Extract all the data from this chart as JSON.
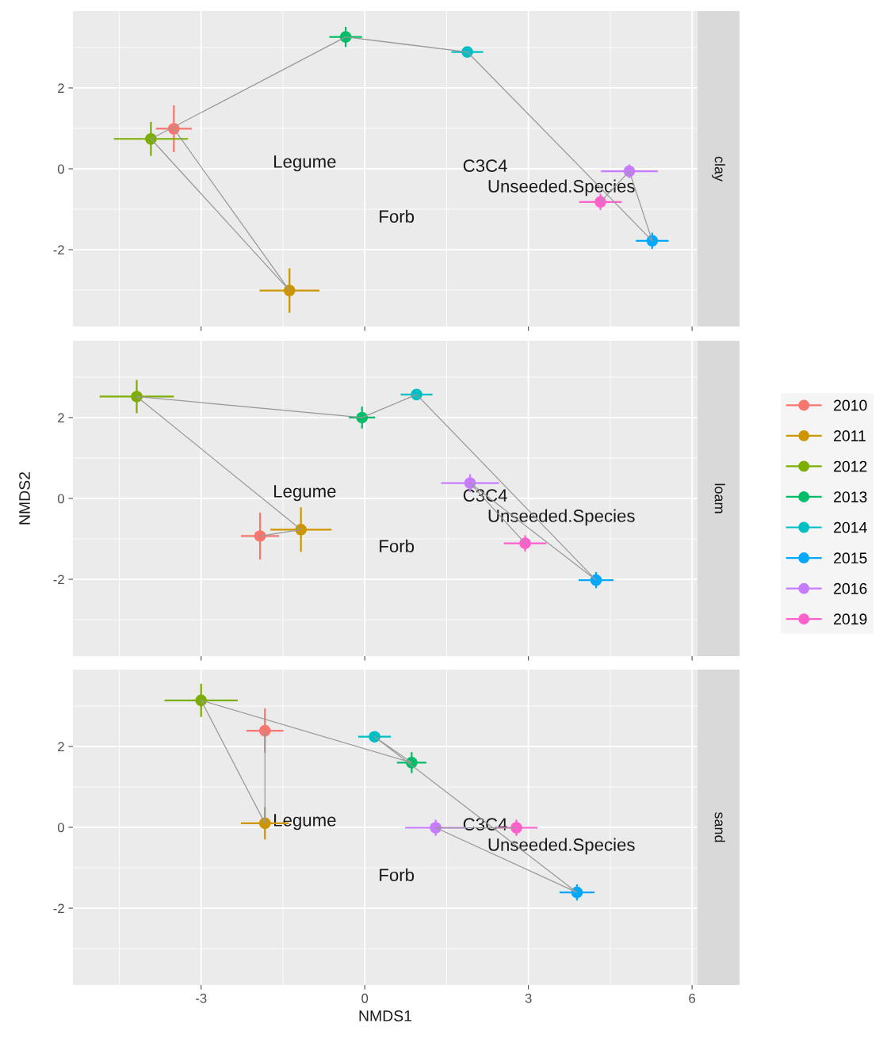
{
  "chart_data": [
    {
      "type": "scatter",
      "y2label": "clay",
      "xlim": [
        -5.35,
        6.1
      ],
      "ylim": [
        -3.9,
        3.9
      ],
      "xticks": [
        -3,
        0,
        3,
        6
      ],
      "yticks": [
        -2,
        0,
        2
      ],
      "tick_labels": "y",
      "grid": true,
      "legend": "right",
      "marker": "circle",
      "series": [
        {
          "type": "line",
          "marker": "none",
          "color": "#999999",
          "x": [
            -3.5,
            -1.38,
            -3.92,
            -0.35,
            1.88,
            5.27,
            4.85,
            4.32
          ],
          "values": [
            0.99,
            -3.01,
            0.74,
            3.26,
            2.89,
            -1.78,
            -0.06,
            -0.82
          ]
        },
        {
          "name": "2010",
          "color": "#F8766D",
          "x": [
            -3.5
          ],
          "values": [
            0.99
          ],
          "xerrors": [
            0.33
          ],
          "errors": [
            0.58
          ]
        },
        {
          "name": "2011",
          "color": "#CD9600",
          "x": [
            -1.38
          ],
          "values": [
            -3.01
          ],
          "xerrors": [
            0.55
          ],
          "errors": [
            0.55
          ]
        },
        {
          "name": "2012",
          "color": "#7CAE00",
          "x": [
            -3.92
          ],
          "values": [
            0.74
          ],
          "xerrors": [
            0.68
          ],
          "errors": [
            0.42
          ]
        },
        {
          "name": "2013",
          "color": "#00BE67",
          "x": [
            -0.35
          ],
          "values": [
            3.26
          ],
          "xerrors": [
            0.3
          ],
          "errors": [
            0.25
          ]
        },
        {
          "name": "2014",
          "color": "#00BFC4",
          "x": [
            1.88
          ],
          "values": [
            2.89
          ],
          "xerrors": [
            0.29
          ],
          "errors": [
            0.1
          ]
        },
        {
          "name": "2015",
          "color": "#00A9FF",
          "x": [
            5.27
          ],
          "values": [
            -1.78
          ],
          "xerrors": [
            0.3
          ],
          "errors": [
            0.2
          ]
        },
        {
          "name": "2016",
          "color": "#C77CFF",
          "x": [
            4.85
          ],
          "values": [
            -0.06
          ],
          "xerrors": [
            0.52
          ],
          "errors": [
            0.17
          ]
        },
        {
          "name": "2019",
          "color": "#FF61CC",
          "x": [
            4.32
          ],
          "values": [
            -0.82
          ],
          "xerrors": [
            0.39
          ],
          "errors": [
            0.2
          ]
        }
      ],
      "annotations": [
        "Legume",
        "Forb",
        "C3C4",
        "Unseeded.Species"
      ]
    },
    {
      "type": "scatter",
      "y2label": "loam",
      "ylabel": "NMDS2",
      "xlim": [
        -5.35,
        6.1
      ],
      "ylim": [
        -3.9,
        3.9
      ],
      "xticks": [
        -3,
        0,
        3,
        6
      ],
      "yticks": [
        -2,
        0,
        2
      ],
      "tick_labels": "y",
      "grid": true,
      "marker": "circle",
      "series": [
        {
          "type": "line",
          "marker": "none",
          "color": "#999999",
          "x": [
            -1.92,
            -1.17,
            -4.18,
            -0.05,
            0.95,
            4.24,
            1.93,
            2.94
          ],
          "values": [
            -0.93,
            -0.77,
            2.52,
            2.0,
            2.57,
            -2.02,
            0.38,
            -1.11
          ]
        },
        {
          "name": "2010",
          "color": "#F8766D",
          "x": [
            -1.92
          ],
          "values": [
            -0.93
          ],
          "xerrors": [
            0.35
          ],
          "errors": [
            0.58
          ]
        },
        {
          "name": "2011",
          "color": "#CD9600",
          "x": [
            -1.17
          ],
          "values": [
            -0.77
          ],
          "xerrors": [
            0.56
          ],
          "errors": [
            0.55
          ]
        },
        {
          "name": "2012",
          "color": "#7CAE00",
          "x": [
            -4.18
          ],
          "values": [
            2.52
          ],
          "xerrors": [
            0.68
          ],
          "errors": [
            0.41
          ]
        },
        {
          "name": "2013",
          "color": "#00BE67",
          "x": [
            -0.05
          ],
          "values": [
            2.0
          ],
          "xerrors": [
            0.24
          ],
          "errors": [
            0.27
          ]
        },
        {
          "name": "2014",
          "color": "#00BFC4",
          "x": [
            0.95
          ],
          "values": [
            2.57
          ],
          "xerrors": [
            0.29
          ],
          "errors": [
            0.1
          ]
        },
        {
          "name": "2015",
          "color": "#00A9FF",
          "x": [
            4.24
          ],
          "values": [
            -2.02
          ],
          "xerrors": [
            0.32
          ],
          "errors": [
            0.2
          ]
        },
        {
          "name": "2016",
          "color": "#C77CFF",
          "x": [
            1.93
          ],
          "values": [
            0.38
          ],
          "xerrors": [
            0.53
          ],
          "errors": [
            0.22
          ]
        },
        {
          "name": "2019",
          "color": "#FF61CC",
          "x": [
            2.94
          ],
          "values": [
            -1.11
          ],
          "xerrors": [
            0.39
          ],
          "errors": [
            0.2
          ]
        }
      ],
      "annotations": [
        "Legume",
        "Forb",
        "C3C4",
        "Unseeded.Species"
      ]
    },
    {
      "type": "scatter",
      "y2label": "sand",
      "xlabel": "NMDS1",
      "xlim": [
        -5.35,
        6.1
      ],
      "ylim": [
        -3.9,
        3.9
      ],
      "xticks": [
        -3,
        0,
        3,
        6
      ],
      "yticks": [
        -2,
        0,
        2
      ],
      "grid": true,
      "marker": "circle",
      "series": [
        {
          "type": "line",
          "marker": "none",
          "color": "#999999",
          "x": [
            -1.83,
            -1.83,
            -3.0,
            0.86,
            0.18,
            3.89,
            1.3,
            2.78
          ],
          "values": [
            2.39,
            0.1,
            3.14,
            1.6,
            2.24,
            -1.61,
            -0.01,
            -0.01
          ]
        },
        {
          "name": "2010",
          "color": "#F8766D",
          "x": [
            -1.83
          ],
          "values": [
            2.39
          ],
          "xerrors": [
            0.34
          ],
          "errors": [
            0.55
          ]
        },
        {
          "name": "2011",
          "color": "#CD9600",
          "x": [
            -1.83
          ],
          "values": [
            0.1
          ],
          "xerrors": [
            0.44
          ],
          "errors": [
            0.4
          ]
        },
        {
          "name": "2012",
          "color": "#7CAE00",
          "x": [
            -3.0
          ],
          "values": [
            3.14
          ],
          "xerrors": [
            0.67
          ],
          "errors": [
            0.41
          ]
        },
        {
          "name": "2013",
          "color": "#00BE67",
          "x": [
            0.86
          ],
          "values": [
            1.6
          ],
          "xerrors": [
            0.27
          ],
          "errors": [
            0.26
          ]
        },
        {
          "name": "2014",
          "color": "#00BFC4",
          "x": [
            0.18
          ],
          "values": [
            2.24
          ],
          "xerrors": [
            0.3
          ],
          "errors": [
            0.1
          ]
        },
        {
          "name": "2015",
          "color": "#00A9FF",
          "x": [
            3.89
          ],
          "values": [
            -1.61
          ],
          "xerrors": [
            0.32
          ],
          "errors": [
            0.2
          ]
        },
        {
          "name": "2016",
          "color": "#C77CFF",
          "x": [
            1.3
          ],
          "values": [
            -0.01
          ],
          "xerrors": [
            0.56
          ],
          "errors": [
            0.2
          ]
        },
        {
          "name": "2019",
          "color": "#FF61CC",
          "x": [
            2.78
          ],
          "values": [
            -0.01
          ],
          "xerrors": [
            0.39
          ],
          "errors": [
            0.2
          ]
        }
      ],
      "annotations": [
        "Legume",
        "Forb",
        "C3C4",
        "Unseeded.Species"
      ]
    }
  ]
}
